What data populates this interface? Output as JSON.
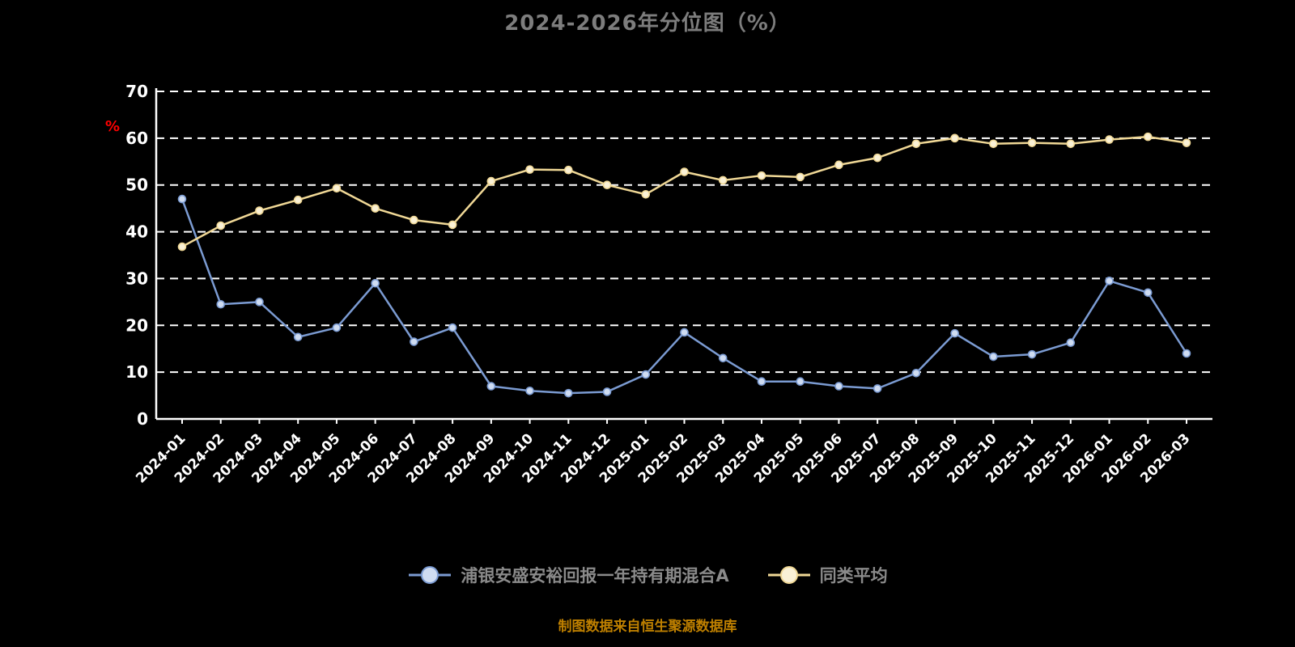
{
  "title": "2024-2026年分位图（%）",
  "y_axis": {
    "unit_label": "%",
    "min": 0,
    "max": 70
  },
  "footer_note": "制图数据来自恒生聚源数据库",
  "colors": {
    "background": "#000000",
    "axis": "#ffffff",
    "grid": "#ffffff",
    "title": "#7d7d7d",
    "y_unit": "#ff0000",
    "legend_text": "#8a8a8a",
    "footer": "#bf8000"
  },
  "legend": [
    {
      "label": "浦银安盛安裕回报一年持有期混合A",
      "color": "#7b9bd2",
      "marker_fill": "#cfdcf1"
    },
    {
      "label": "同类平均",
      "color": "#f0d896",
      "marker_fill": "#faf1d6"
    }
  ],
  "chart_data": {
    "type": "line",
    "title": "2024-2026年分位图（%）",
    "xlabel": "",
    "ylabel": "%",
    "ylim": [
      0,
      70
    ],
    "yticks": [
      0,
      10,
      20,
      30,
      40,
      50,
      60,
      70
    ],
    "grid": true,
    "grid_style": "dashed",
    "legend_position": "bottom",
    "categories": [
      "2024-01",
      "2024-02",
      "2024-03",
      "2024-04",
      "2024-05",
      "2024-06",
      "2024-07",
      "2024-08",
      "2024-09",
      "2024-10",
      "2024-11",
      "2024-12",
      "2025-01",
      "2025-02",
      "2025-03",
      "2025-04",
      "2025-05",
      "2025-06",
      "2025-07",
      "2025-08",
      "2025-09",
      "2025-10",
      "2025-11",
      "2025-12",
      "2026-01",
      "2026-02",
      "2026-03"
    ],
    "series": [
      {
        "name": "浦银安盛安裕回报一年持有期混合A",
        "color": "#7b9bd2",
        "marker_fill": "#cfdcf1",
        "values": [
          47,
          24.5,
          25,
          17.5,
          19.5,
          29,
          16.5,
          19.5,
          7,
          6,
          5.5,
          5.8,
          9.5,
          18.5,
          13,
          8,
          8,
          7,
          6.5,
          9.8,
          18.3,
          13.3,
          13.8,
          16.3,
          29.5,
          27,
          14
        ]
      },
      {
        "name": "同类平均",
        "color": "#f0d896",
        "marker_fill": "#faf1d6",
        "values": [
          36.8,
          41.3,
          44.5,
          46.8,
          49.3,
          45,
          42.5,
          41.5,
          50.8,
          53.3,
          53.2,
          50,
          48,
          52.8,
          51,
          52,
          51.7,
          54.3,
          55.8,
          58.8,
          60,
          58.8,
          59,
          58.8,
          59.7,
          60.3,
          59
        ]
      }
    ]
  }
}
